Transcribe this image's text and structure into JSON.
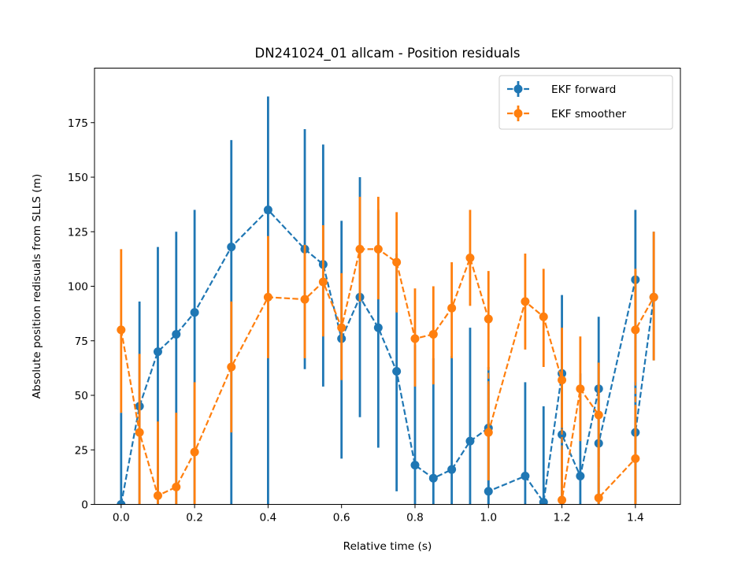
{
  "chart_data": {
    "type": "line",
    "title": "DN241024_01 allcam - Position residuals",
    "xlabel": "Relative time (s)",
    "ylabel": "Absolute position redisuals from SLLS (m)",
    "xlim": [
      -0.0725,
      1.5225
    ],
    "ylim": [
      0,
      200
    ],
    "x_ticks": [
      "0.0",
      "0.2",
      "0.4",
      "0.6",
      "0.8",
      "1.0",
      "1.2",
      "1.4"
    ],
    "y_ticks": [
      "0",
      "25",
      "50",
      "75",
      "100",
      "125",
      "150",
      "175"
    ],
    "grid": false,
    "legend_position": "upper right",
    "series": [
      {
        "name": "EKF forward",
        "color": "#1f77b4",
        "linestyle": "dashed",
        "marker": "circle",
        "points": [
          {
            "x": 0.0,
            "y": 0,
            "lo": 0,
            "hi": 42
          },
          {
            "x": 0.05,
            "y": 45,
            "lo": 0,
            "hi": 93
          },
          {
            "x": 0.1,
            "y": 70,
            "lo": 0,
            "hi": 118
          },
          {
            "x": 0.15,
            "y": 78,
            "lo": 0,
            "hi": 125
          },
          {
            "x": 0.2,
            "y": 88,
            "lo": 0,
            "hi": 135
          },
          {
            "x": 0.3,
            "y": 118,
            "lo": 0,
            "hi": 167
          },
          {
            "x": 0.4,
            "y": 135,
            "lo": 0,
            "hi": 187
          },
          {
            "x": 0.5,
            "y": 117,
            "lo": 62,
            "hi": 172
          },
          {
            "x": 0.55,
            "y": 110,
            "lo": 54,
            "hi": 165
          },
          {
            "x": 0.6,
            "y": 76,
            "lo": 21,
            "hi": 130
          },
          {
            "x": 0.65,
            "y": 95,
            "lo": 40,
            "hi": 150
          },
          {
            "x": 0.7,
            "y": 81,
            "lo": 26,
            "hi": 135
          },
          {
            "x": 0.75,
            "y": 61,
            "lo": 6,
            "hi": 115
          },
          {
            "x": 0.8,
            "y": 18,
            "lo": 0,
            "hi": 73
          },
          {
            "x": 0.85,
            "y": 12,
            "lo": 0,
            "hi": 67
          },
          {
            "x": 0.9,
            "y": 16,
            "lo": 0,
            "hi": 68
          },
          {
            "x": 0.95,
            "y": 29,
            "lo": 0,
            "hi": 81
          },
          {
            "x": 1.0,
            "y": 35,
            "lo": 0,
            "hi": 63
          },
          {
            "x": 1.0,
            "y": 6,
            "lo": 0,
            "hi": 60
          },
          {
            "x": 1.1,
            "y": 13,
            "lo": 0,
            "hi": 56
          },
          {
            "x": 1.15,
            "y": 1,
            "lo": 0,
            "hi": 45
          },
          {
            "x": 1.2,
            "y": 60,
            "lo": 0,
            "hi": 96
          },
          {
            "x": 1.2,
            "y": 32,
            "lo": 0,
            "hi": 81
          },
          {
            "x": 1.25,
            "y": 13,
            "lo": 0,
            "hi": 60
          },
          {
            "x": 1.3,
            "y": 53,
            "lo": 0,
            "hi": 86
          },
          {
            "x": 1.3,
            "y": 28,
            "lo": 0,
            "hi": 66
          },
          {
            "x": 1.4,
            "y": 103,
            "lo": 0,
            "hi": 135
          },
          {
            "x": 1.4,
            "y": 33,
            "lo": 0,
            "hi": 107
          },
          {
            "x": 1.45,
            "y": 95,
            "lo": 66,
            "hi": 125
          }
        ]
      },
      {
        "name": "EKF smoother",
        "color": "#ff7f0e",
        "linestyle": "dashed",
        "marker": "circle",
        "points": [
          {
            "x": 0.0,
            "y": 80,
            "lo": 42,
            "hi": 117
          },
          {
            "x": 0.05,
            "y": 33,
            "lo": 0,
            "hi": 69
          },
          {
            "x": 0.1,
            "y": 4,
            "lo": 0,
            "hi": 38
          },
          {
            "x": 0.15,
            "y": 8,
            "lo": 0,
            "hi": 42
          },
          {
            "x": 0.2,
            "y": 24,
            "lo": 0,
            "hi": 56
          },
          {
            "x": 0.3,
            "y": 63,
            "lo": 33,
            "hi": 93
          },
          {
            "x": 0.4,
            "y": 95,
            "lo": 67,
            "hi": 123
          },
          {
            "x": 0.5,
            "y": 94,
            "lo": 67,
            "hi": 119
          },
          {
            "x": 0.55,
            "y": 102,
            "lo": 77,
            "hi": 128
          },
          {
            "x": 0.6,
            "y": 81,
            "lo": 57,
            "hi": 106
          },
          {
            "x": 0.65,
            "y": 117,
            "lo": 93,
            "hi": 141
          },
          {
            "x": 0.7,
            "y": 117,
            "lo": 94,
            "hi": 141
          },
          {
            "x": 0.75,
            "y": 111,
            "lo": 88,
            "hi": 134
          },
          {
            "x": 0.8,
            "y": 76,
            "lo": 54,
            "hi": 99
          },
          {
            "x": 0.85,
            "y": 78,
            "lo": 55,
            "hi": 100
          },
          {
            "x": 0.9,
            "y": 90,
            "lo": 67,
            "hi": 111
          },
          {
            "x": 0.95,
            "y": 113,
            "lo": 91,
            "hi": 135
          },
          {
            "x": 1.0,
            "y": 85,
            "lo": 62,
            "hi": 107
          },
          {
            "x": 1.0,
            "y": 33,
            "lo": 11,
            "hi": 55
          },
          {
            "x": 1.1,
            "y": 93,
            "lo": 71,
            "hi": 115
          },
          {
            "x": 1.15,
            "y": 86,
            "lo": 63,
            "hi": 108
          },
          {
            "x": 1.2,
            "y": 57,
            "lo": 35,
            "hi": 81
          },
          {
            "x": 1.2,
            "y": 2,
            "lo": 0,
            "hi": 25
          },
          {
            "x": 1.25,
            "y": 53,
            "lo": 29,
            "hi": 77
          },
          {
            "x": 1.3,
            "y": 41,
            "lo": 17,
            "hi": 65
          },
          {
            "x": 1.3,
            "y": 3,
            "lo": 0,
            "hi": 27
          },
          {
            "x": 1.4,
            "y": 21,
            "lo": 0,
            "hi": 45
          },
          {
            "x": 1.4,
            "y": 80,
            "lo": 56,
            "hi": 108
          },
          {
            "x": 1.45,
            "y": 95,
            "lo": 66,
            "hi": 125
          }
        ]
      }
    ]
  }
}
